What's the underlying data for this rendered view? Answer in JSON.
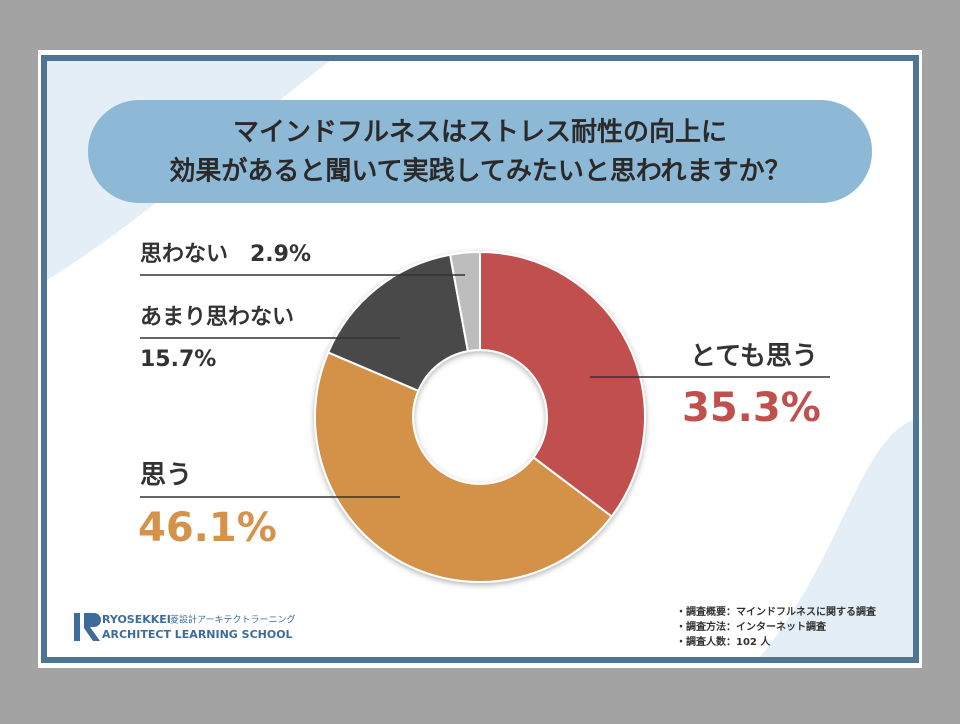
{
  "chart_data": {
    "type": "donut",
    "title": [
      "マインドフルネスはストレス耐性の向上に",
      "効果があると聞いて実践してみたいと思われますか？"
    ],
    "categories": [
      "とても思う",
      "思う",
      "あまり思わない",
      "思わない"
    ],
    "values": [
      35.3,
      46.1,
      15.7,
      2.9
    ],
    "value_labels": [
      "35.3%",
      "46.1%",
      "15.7%",
      "2.9%"
    ],
    "colors": [
      "#c0504d",
      "#d4924a",
      "#4a4a4a",
      "#bdbdbd"
    ]
  },
  "notes": [
    "・調査概要：マインドフルネスに関する調査",
    "・調査方法：インターネット調査",
    "・調査人数：102 人"
  ],
  "logo": {
    "name": "RYOSEKKEI",
    "sub": "菱設計アーキテクトラーニング",
    "school": "ARCHITECT LEARNING SCHOOL"
  }
}
